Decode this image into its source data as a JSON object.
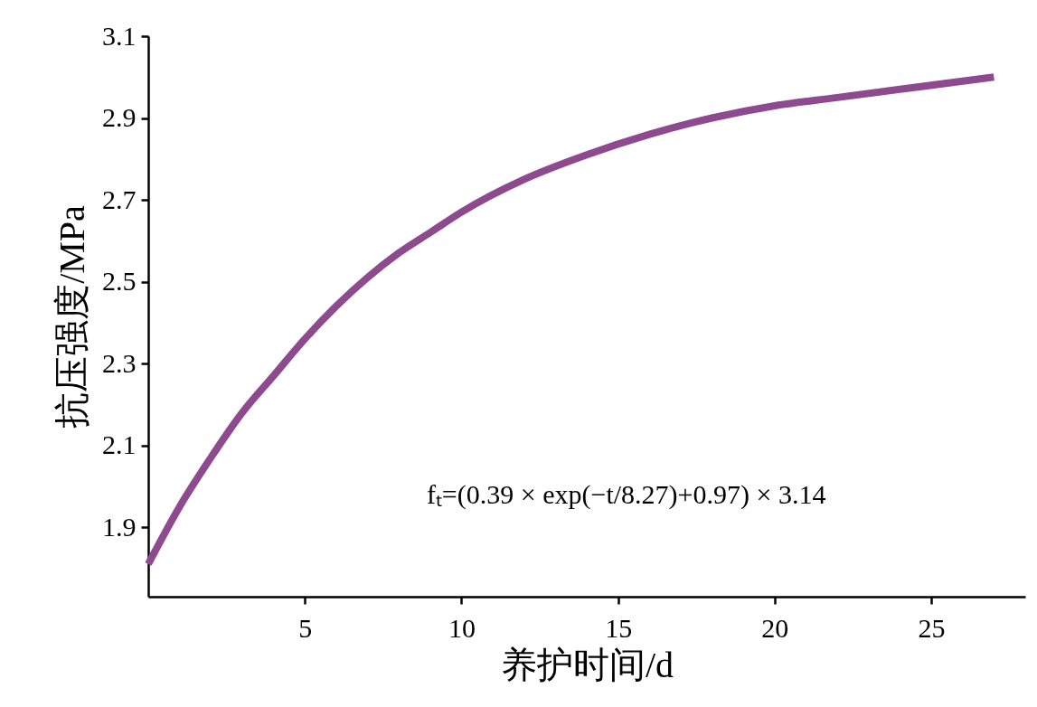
{
  "chart_data": {
    "type": "line",
    "xlabel": "养护时间/d",
    "ylabel": "抗压强度/MPa",
    "annotations": [
      "fₜ=(0.39 × exp(−t/8.27)+0.97) × 3.14"
    ],
    "x": [
      0,
      1,
      2,
      3,
      4,
      5,
      6,
      7,
      8,
      9,
      10,
      12,
      14,
      16,
      18,
      20,
      22,
      24,
      27
    ],
    "series": [
      {
        "color": "#8e4a8e",
        "values": [
          1.81,
          1.95,
          2.07,
          2.18,
          2.27,
          2.36,
          2.44,
          2.51,
          2.57,
          2.62,
          2.67,
          2.75,
          2.81,
          2.86,
          2.9,
          2.93,
          2.95,
          2.97,
          3.0
        ]
      }
    ],
    "xlim": [
      0,
      28
    ],
    "ylim": [
      1.73,
      3.1
    ],
    "xticks": [
      5,
      10,
      15,
      20,
      25
    ],
    "yticks": [
      1.9,
      2.1,
      2.3,
      2.5,
      2.7,
      2.9,
      3.1
    ],
    "grid": false,
    "marker": "none",
    "line_style": "solid"
  }
}
